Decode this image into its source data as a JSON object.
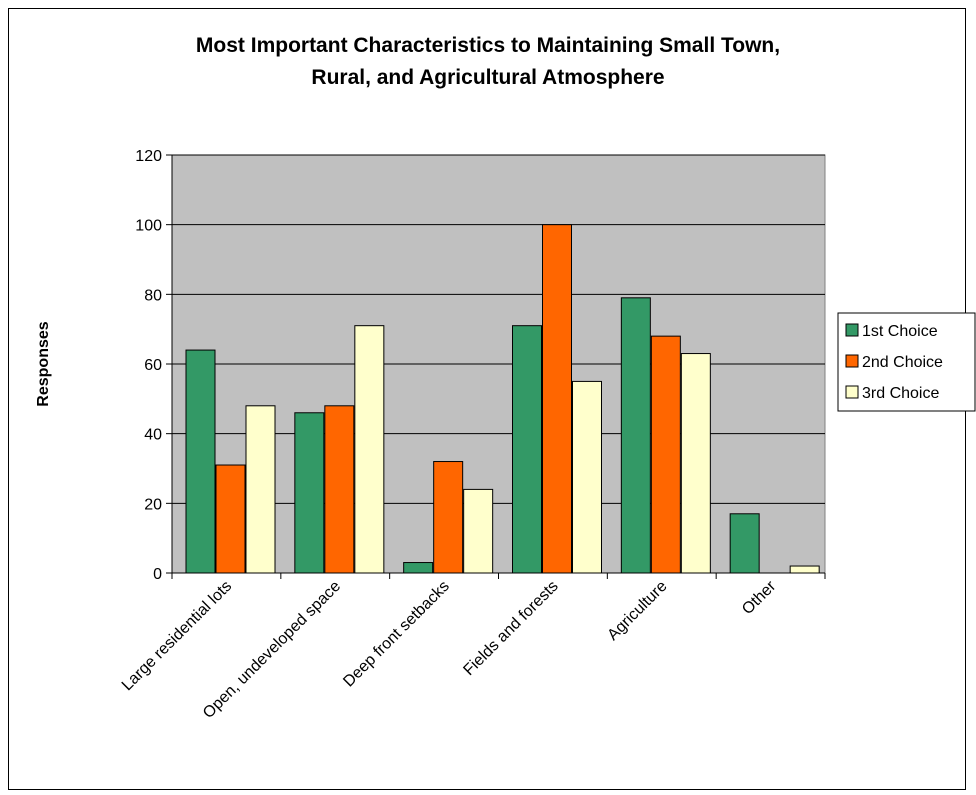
{
  "chart_data": {
    "type": "bar",
    "title_lines": [
      "Most Important Characteristics to Maintaining Small Town,",
      "Rural, and Agricultural Atmosphere"
    ],
    "xlabel": "",
    "ylabel": "Responses",
    "ylim": [
      0,
      120
    ],
    "yticks": [
      0,
      20,
      40,
      60,
      80,
      100,
      120
    ],
    "grid": true,
    "legend_position": "right",
    "plot_background": "#C0C0C0",
    "categories": [
      "Large residential lots",
      "Open, undeveloped space",
      "Deep front setbacks",
      "Fields and forests",
      "Agriculture",
      "Other"
    ],
    "series": [
      {
        "name": "1st Choice",
        "color": "#339966",
        "values": [
          64,
          46,
          3,
          71,
          79,
          17
        ]
      },
      {
        "name": "2nd Choice",
        "color": "#FF6600",
        "values": [
          31,
          48,
          32,
          100,
          68,
          0
        ]
      },
      {
        "name": "3rd Choice",
        "color": "#FFFFCC",
        "values": [
          48,
          71,
          24,
          55,
          63,
          2
        ]
      }
    ]
  }
}
